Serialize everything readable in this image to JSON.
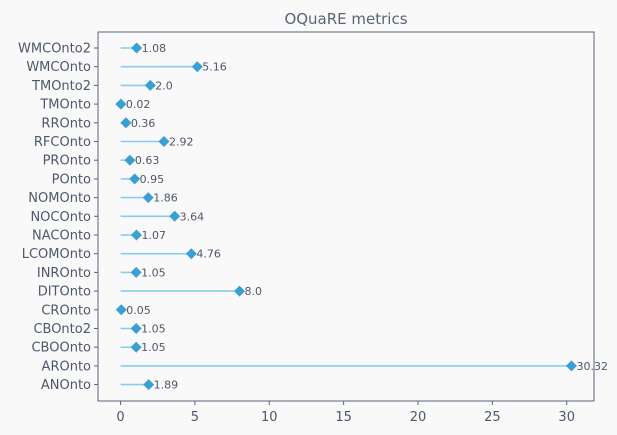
{
  "chart_data": {
    "type": "lollipop",
    "title": "OQuaRE metrics",
    "xlabel": "",
    "ylabel": "",
    "xlim": [
      -1.516,
      31.836
    ],
    "xticks": [
      0,
      5,
      10,
      15,
      20,
      25,
      30
    ],
    "grid": false,
    "categories": [
      "WMCOnto2",
      "WMCOnto",
      "TMOnto2",
      "TMOnto",
      "RROnto",
      "RFCOnto",
      "PROnto",
      "POnto",
      "NOMOnto",
      "NOCOnto",
      "NACOnto",
      "LCOMOnto",
      "INROnto",
      "DITOnto",
      "CROnto",
      "CBOnto2",
      "CBOOnto",
      "AROnto",
      "ANOnto"
    ],
    "values": [
      1.08,
      5.16,
      2.0,
      0.02,
      0.36,
      2.92,
      0.63,
      0.95,
      1.86,
      3.64,
      1.07,
      4.76,
      1.05,
      8.0,
      0.05,
      1.05,
      1.05,
      30.32,
      1.89
    ],
    "value_labels": [
      "1.08",
      "5.16",
      "2.0",
      "0.02",
      "0.36",
      "2.92",
      "0.63",
      "0.95",
      "1.86",
      "3.64",
      "1.07",
      "4.76",
      "1.05",
      "8.0",
      "0.05",
      "1.05",
      "1.05",
      "30.32",
      "1.89"
    ],
    "stem_color": "#87ceeb",
    "marker_color": "#3a9fd4",
    "marker": "diamond"
  }
}
